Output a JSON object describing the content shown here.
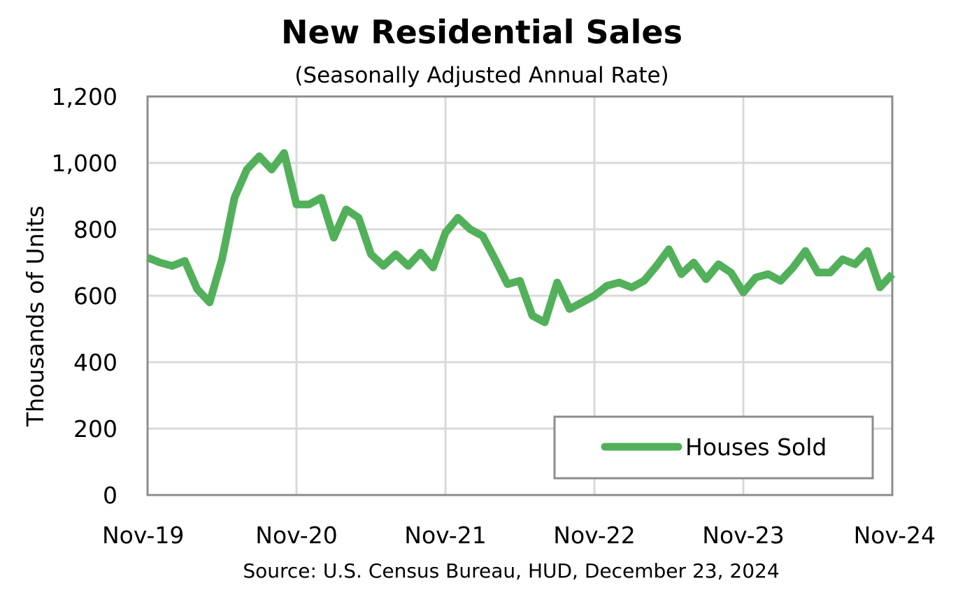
{
  "chart_data": {
    "type": "line",
    "title": "New Residential Sales",
    "subtitle": "(Seasonally Adjusted Annual Rate)",
    "ylabel": "Thousands of Units",
    "xlabel": "",
    "source": "Source:  U.S. Census Bureau, HUD, December 23, 2024",
    "ylim": [
      0,
      1200
    ],
    "yticks": [
      "0",
      "200",
      "400",
      "600",
      "800",
      "1,000",
      "1,200"
    ],
    "ytick_values": [
      0,
      200,
      400,
      600,
      800,
      1000,
      1200
    ],
    "xticks": [
      "Nov-19",
      "Nov-20",
      "Nov-21",
      "Nov-22",
      "Nov-23",
      "Nov-24"
    ],
    "xtick_indices": [
      0,
      12,
      24,
      36,
      48,
      60
    ],
    "grid": true,
    "legend_position": "bottom-right",
    "series": [
      {
        "name": "Houses Sold",
        "color": "#52b05a",
        "values": [
          715,
          700,
          690,
          705,
          620,
          580,
          710,
          895,
          980,
          1020,
          980,
          1030,
          875,
          875,
          895,
          775,
          860,
          835,
          725,
          690,
          725,
          690,
          730,
          685,
          790,
          835,
          800,
          780,
          710,
          635,
          645,
          540,
          520,
          640,
          560,
          580,
          600,
          630,
          640,
          625,
          645,
          690,
          740,
          665,
          700,
          650,
          695,
          670,
          610,
          655,
          665,
          645,
          685,
          735,
          670,
          670,
          710,
          695,
          735,
          625,
          665
        ]
      }
    ]
  }
}
